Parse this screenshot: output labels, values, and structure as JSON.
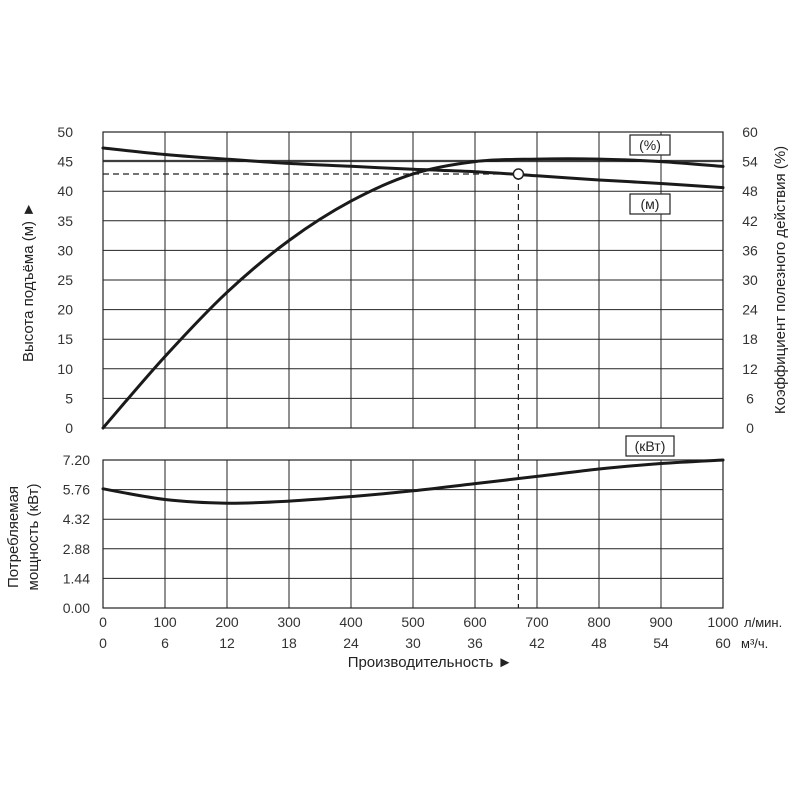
{
  "chart_data": [
    {
      "type": "line",
      "panel": "head-efficiency",
      "x_unit": "л/мин.",
      "xlim": [
        0,
        1000
      ],
      "y_left": {
        "label": "Высота подъёма (м) ►",
        "lim": [
          0,
          50
        ],
        "ticks": [
          "0",
          "5",
          "10",
          "15",
          "20",
          "25",
          "30",
          "35",
          "40",
          "45",
          "50"
        ]
      },
      "y_right": {
        "label": "Коэффициент полезного действия (%)",
        "lim": [
          0,
          60
        ],
        "ticks": [
          "0",
          "6",
          "12",
          "18",
          "24",
          "30",
          "36",
          "42",
          "48",
          "54",
          "60"
        ]
      },
      "series": [
        {
          "name": "(м)",
          "axis": "left",
          "x": [
            0,
            100,
            200,
            300,
            400,
            500,
            600,
            700,
            800,
            900,
            1000
          ],
          "y": [
            47.3,
            46.2,
            45.4,
            44.7,
            44.2,
            43.7,
            43.3,
            42.6,
            41.9,
            41.3,
            40.6
          ]
        },
        {
          "name": "(%)",
          "axis": "right",
          "x": [
            0,
            100,
            200,
            300,
            400,
            500,
            600,
            700,
            800,
            900,
            1000
          ],
          "y": [
            0,
            14.5,
            27.5,
            38,
            46,
            51.5,
            54,
            54.5,
            54.5,
            54,
            53
          ]
        }
      ],
      "annotations": [
        {
          "kind": "duty-point",
          "x": 670,
          "y_left": 42.9
        },
        {
          "kind": "reference-line",
          "y_left": 45.2
        }
      ]
    },
    {
      "type": "line",
      "panel": "power",
      "y_left": {
        "label_lines": [
          "Потребляемая",
          "мощность (кВт)"
        ],
        "lim": [
          0,
          7.2
        ],
        "ticks": [
          "0.00",
          "1.44",
          "2.88",
          "4.32",
          "5.76",
          "7.20"
        ]
      },
      "x_primary": {
        "unit": "л/мин.",
        "lim": [
          0,
          1000
        ],
        "ticks": [
          "0",
          "100",
          "200",
          "300",
          "400",
          "500",
          "600",
          "700",
          "800",
          "900",
          "1000"
        ]
      },
      "x_secondary": {
        "unit": "м³/ч.",
        "lim": [
          0,
          60
        ],
        "ticks": [
          "0",
          "6",
          "12",
          "18",
          "24",
          "30",
          "36",
          "42",
          "48",
          "54",
          "60"
        ]
      },
      "xlabel": "Производительность ►",
      "series": [
        {
          "name": "(кВт)",
          "x": [
            0,
            100,
            200,
            300,
            400,
            500,
            600,
            700,
            800,
            900,
            1000
          ],
          "y": [
            5.8,
            5.28,
            5.1,
            5.2,
            5.42,
            5.7,
            6.05,
            6.4,
            6.76,
            7.03,
            7.2
          ]
        }
      ]
    }
  ]
}
